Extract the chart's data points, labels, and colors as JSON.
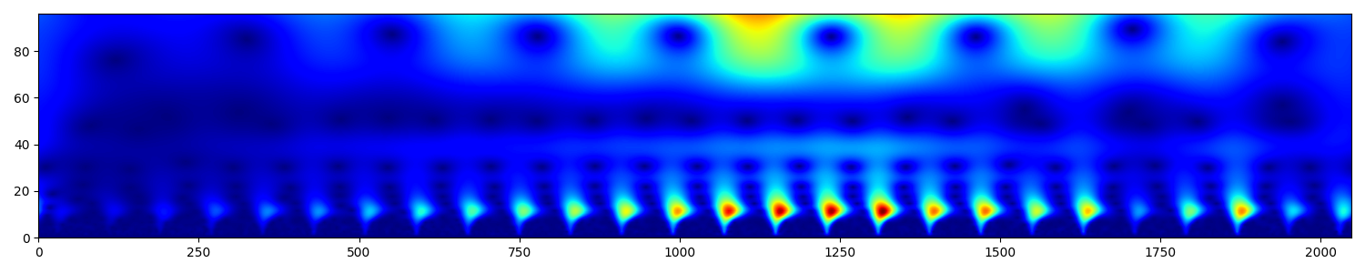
{
  "xlim": [
    0,
    2048
  ],
  "ylim": [
    0,
    96
  ],
  "xticks": [
    0,
    250,
    500,
    750,
    1000,
    1250,
    1500,
    1750,
    2000
  ],
  "yticks": [
    0,
    20,
    40,
    60,
    80
  ],
  "colormap": "jet",
  "figsize": [
    15.0,
    3.0
  ],
  "dpi": 100,
  "n_samples": 2048,
  "num_scales": 96,
  "fs": 1000.0,
  "omega0": 6.0
}
